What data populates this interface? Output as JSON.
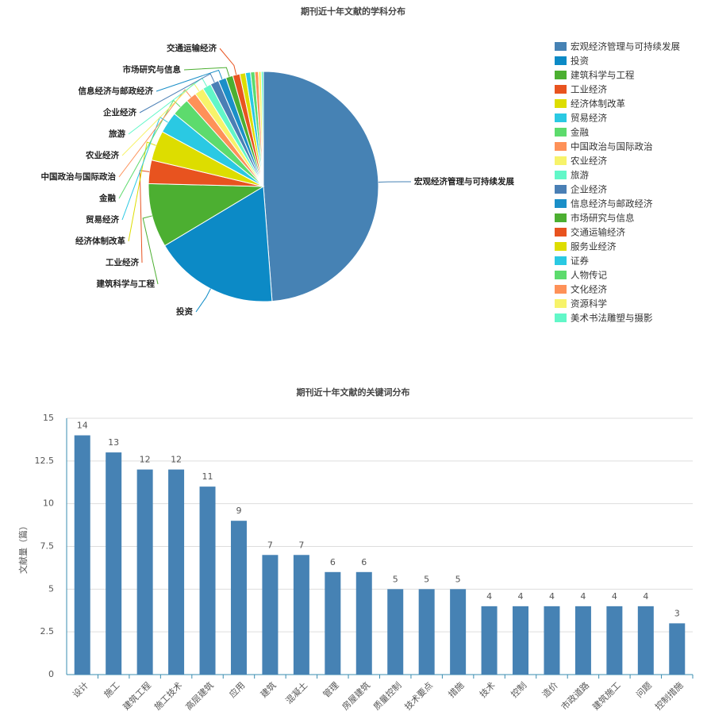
{
  "chart_data": [
    {
      "type": "pie",
      "title": "期刊近十年文献的学科分布",
      "categories": [
        "宏观经济管理与可持续发展",
        "投资",
        "建筑科学与工程",
        "工业经济",
        "经济体制改革",
        "贸易经济",
        "金融",
        "中国政治与国际政治",
        "农业经济",
        "旅游",
        "企业经济",
        "信息经济与邮政经济",
        "市场研究与信息",
        "交通运输经济",
        "服务业经济",
        "证券",
        "人物传记",
        "文化经济",
        "资源科学",
        "美术书法雕塑与摄影"
      ],
      "values": [
        48.8,
        17.6,
        9,
        3.3,
        4.2,
        3,
        2.5,
        1.5,
        1.3,
        1.2,
        1.2,
        1.1,
        1,
        1,
        0.8,
        0.7,
        0.6,
        0.5,
        0.4,
        0.3
      ],
      "colors": [
        "#4682b4",
        "#0c8ac6",
        "#4caf31",
        "#e8531f",
        "#dddd00",
        "#2ac9e3",
        "#5ddb6d",
        "#fe9158",
        "#f7f36a",
        "#62f7c8",
        "#4a7fb5",
        "#1b8fc8",
        "#4caf31",
        "#e8531f",
        "#dddd00",
        "#2ac9e3",
        "#5ddb6d",
        "#fe9158",
        "#f7f36a",
        "#62f7c8"
      ]
    },
    {
      "type": "bar",
      "title": "期刊近十年文献的关键词分布",
      "y_label": "文献量（篇）",
      "categories": [
        "设计",
        "施工",
        "建筑工程",
        "施工技术",
        "高层建筑",
        "应用",
        "建筑",
        "混凝土",
        "管理",
        "房屋建筑",
        "质量控制",
        "技术要点",
        "措施",
        "技术",
        "控制",
        "造价",
        "市政道路",
        "建筑施工",
        "问题",
        "控制措施"
      ],
      "values": [
        14,
        13,
        12,
        12,
        11,
        9,
        7,
        7,
        6,
        6,
        5,
        5,
        5,
        4,
        4,
        4,
        4,
        4,
        4,
        3
      ],
      "color": "#4682b4",
      "ylim": [
        0,
        15
      ],
      "yticks": [
        0,
        2.5,
        5,
        7.5,
        10,
        12.5,
        15
      ],
      "grid": true
    }
  ]
}
